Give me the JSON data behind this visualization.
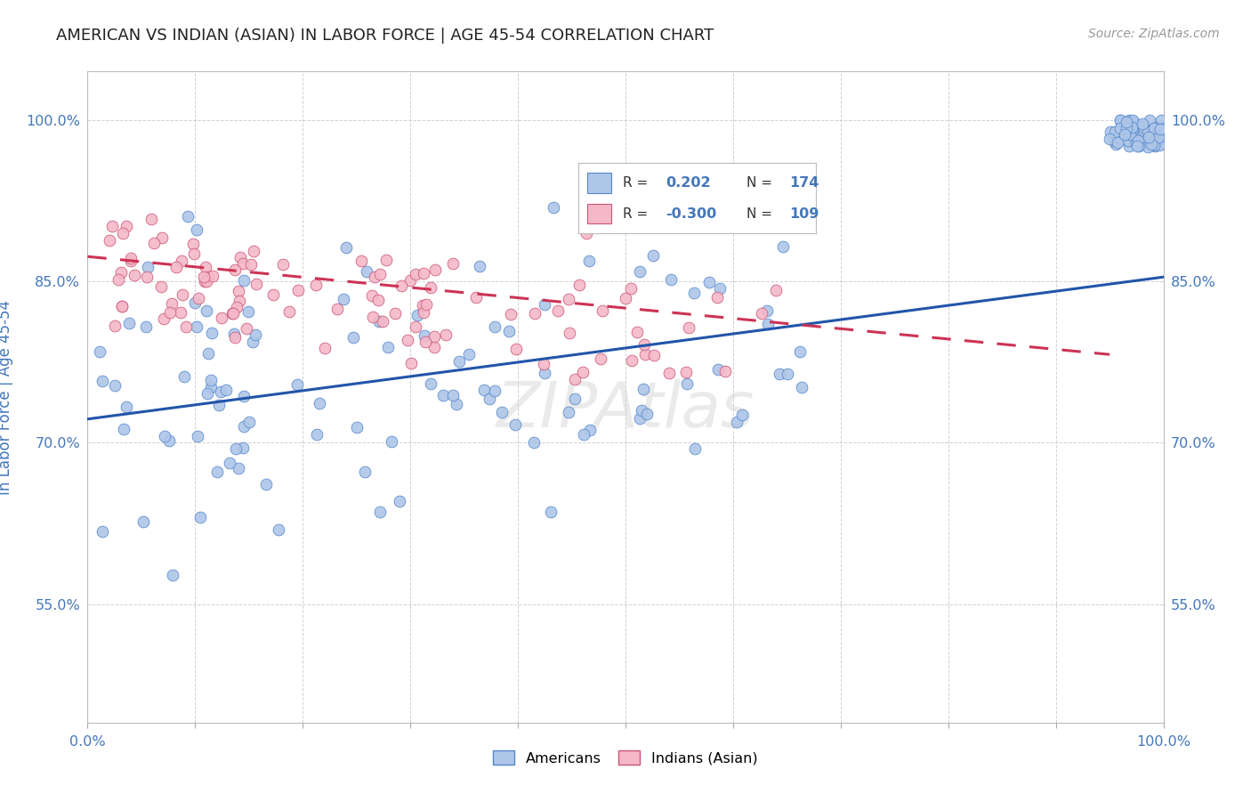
{
  "title": "AMERICAN VS INDIAN (ASIAN) IN LABOR FORCE | AGE 45-54 CORRELATION CHART",
  "source": "Source: ZipAtlas.com",
  "ylabel": "In Labor Force | Age 45-54",
  "xlim": [
    0.0,
    1.0
  ],
  "ylim": [
    0.44,
    1.045
  ],
  "y_ticks": [
    0.55,
    0.7,
    0.85,
    1.0
  ],
  "watermark": "ZIPAtlas",
  "legend_r_american": "0.202",
  "legend_n_american": "174",
  "legend_r_indian": "-0.300",
  "legend_n_indian": "109",
  "american_color": "#aec6e8",
  "indian_color": "#f4b8c8",
  "american_edge_color": "#5588cc",
  "indian_edge_color": "#cc5577",
  "american_line_color": "#2255aa",
  "indian_line_color": "#cc3355",
  "grid_color": "#cccccc",
  "background_color": "#ffffff",
  "title_color": "#222222",
  "axis_label_color": "#4477bb",
  "tick_label_color": "#4477bb"
}
